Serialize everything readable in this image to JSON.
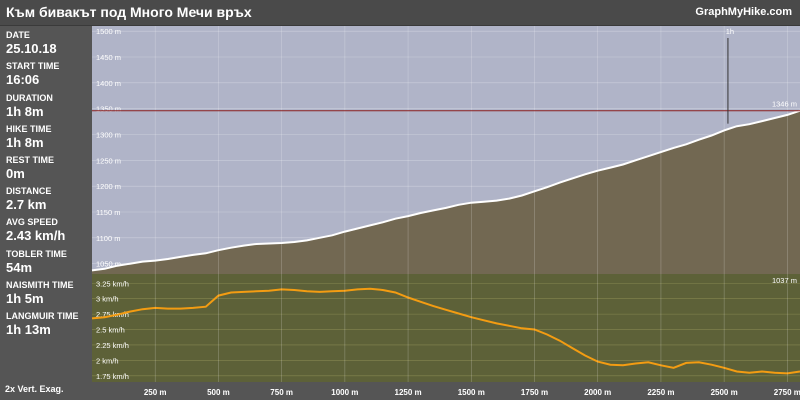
{
  "header": {
    "title": "Към бивакът под Много Мечи връх",
    "brand": "GraphMyHike.com"
  },
  "stats": [
    {
      "label": "DATE",
      "value": "25.10.18"
    },
    {
      "label": "START TIME",
      "value": "16:06"
    },
    {
      "label": "DURATION",
      "value": "1h 8m"
    },
    {
      "label": "HIKE TIME",
      "value": "1h 8m"
    },
    {
      "label": "REST TIME",
      "value": "0m"
    },
    {
      "label": "DISTANCE",
      "value": "2.7 km"
    },
    {
      "label": "AVG SPEED",
      "value": "2.43 km/h"
    },
    {
      "label": "TOBLER TIME",
      "value": "54m"
    },
    {
      "label": "NAISMITH TIME",
      "value": "1h 5m"
    },
    {
      "label": "LANGMUIR TIME",
      "value": "1h 13m"
    }
  ],
  "footer": {
    "exaggeration": "2x Vert. Exag."
  },
  "colors": {
    "sky": "#b0b4c8",
    "ground": "#726852",
    "speed_panel": "#5d6138",
    "speed_line": "#f39c12",
    "max_line": "#8b2020"
  },
  "chart_data": [
    {
      "type": "area",
      "unit": "m",
      "x": [
        0,
        50,
        100,
        150,
        200,
        250,
        300,
        350,
        400,
        450,
        500,
        550,
        600,
        650,
        700,
        750,
        800,
        850,
        900,
        950,
        1000,
        1050,
        1100,
        1150,
        1200,
        1250,
        1300,
        1350,
        1400,
        1450,
        1500,
        1550,
        1600,
        1650,
        1700,
        1750,
        1800,
        1850,
        1900,
        1950,
        2000,
        2050,
        2100,
        2150,
        2200,
        2250,
        2300,
        2350,
        2400,
        2450,
        2500,
        2550,
        2600,
        2650,
        2700,
        2750,
        2800
      ],
      "y": [
        1037,
        1040,
        1046,
        1050,
        1054,
        1056,
        1059,
        1063,
        1067,
        1070,
        1076,
        1081,
        1085,
        1088,
        1089,
        1090,
        1092,
        1095,
        1100,
        1105,
        1112,
        1118,
        1124,
        1130,
        1137,
        1142,
        1148,
        1153,
        1158,
        1164,
        1168,
        1170,
        1172,
        1176,
        1182,
        1190,
        1198,
        1207,
        1215,
        1223,
        1230,
        1236,
        1242,
        1250,
        1258,
        1266,
        1274,
        1281,
        1290,
        1298,
        1308,
        1316,
        1320,
        1326,
        1332,
        1338,
        1346
      ],
      "xticks": [
        "250 m",
        "500 m",
        "750 m",
        "1000 m",
        "1250 m",
        "1500 m",
        "1750 m",
        "2000 m",
        "2250 m",
        "2500 m",
        "2750 m"
      ],
      "yticks": [
        "1050 m",
        "1100 m",
        "1150 m",
        "1200 m",
        "1250 m",
        "1300 m",
        "1350 m",
        "1400 m",
        "1450 m",
        "1500 m"
      ],
      "max_label": "1346 m",
      "min_label": "1037 m",
      "marker_label": "1h",
      "marker_x": 2515,
      "ylim": [
        1030,
        1510
      ],
      "xlim": [
        0,
        2800
      ]
    },
    {
      "type": "line",
      "unit": "km/h",
      "x": [
        0,
        50,
        100,
        150,
        200,
        250,
        300,
        350,
        400,
        450,
        500,
        550,
        600,
        650,
        700,
        750,
        800,
        850,
        900,
        950,
        1000,
        1050,
        1100,
        1150,
        1200,
        1250,
        1300,
        1350,
        1400,
        1450,
        1500,
        1550,
        1600,
        1650,
        1700,
        1750,
        1800,
        1850,
        1900,
        1950,
        2000,
        2050,
        2100,
        2150,
        2200,
        2250,
        2300,
        2350,
        2400,
        2450,
        2500,
        2550,
        2600,
        2650,
        2700,
        2750,
        2800
      ],
      "y": [
        2.68,
        2.7,
        2.74,
        2.79,
        2.83,
        2.85,
        2.84,
        2.84,
        2.85,
        2.87,
        3.05,
        3.1,
        3.11,
        3.12,
        3.13,
        3.15,
        3.14,
        3.12,
        3.11,
        3.12,
        3.13,
        3.15,
        3.16,
        3.14,
        3.1,
        3.02,
        2.95,
        2.88,
        2.82,
        2.76,
        2.7,
        2.65,
        2.6,
        2.56,
        2.52,
        2.5,
        2.42,
        2.32,
        2.2,
        2.08,
        1.98,
        1.93,
        1.92,
        1.95,
        1.97,
        1.92,
        1.88,
        1.96,
        1.97,
        1.93,
        1.88,
        1.82,
        1.8,
        1.82,
        1.8,
        1.79,
        1.82
      ],
      "yticks": [
        "1.75 km/h",
        "2 km/h",
        "2.25 km/h",
        "2.5 km/h",
        "2.75 km/h",
        "3 km/h",
        "3.25 km/h"
      ],
      "ylim": [
        1.65,
        3.4
      ],
      "xlim": [
        0,
        2800
      ]
    }
  ]
}
